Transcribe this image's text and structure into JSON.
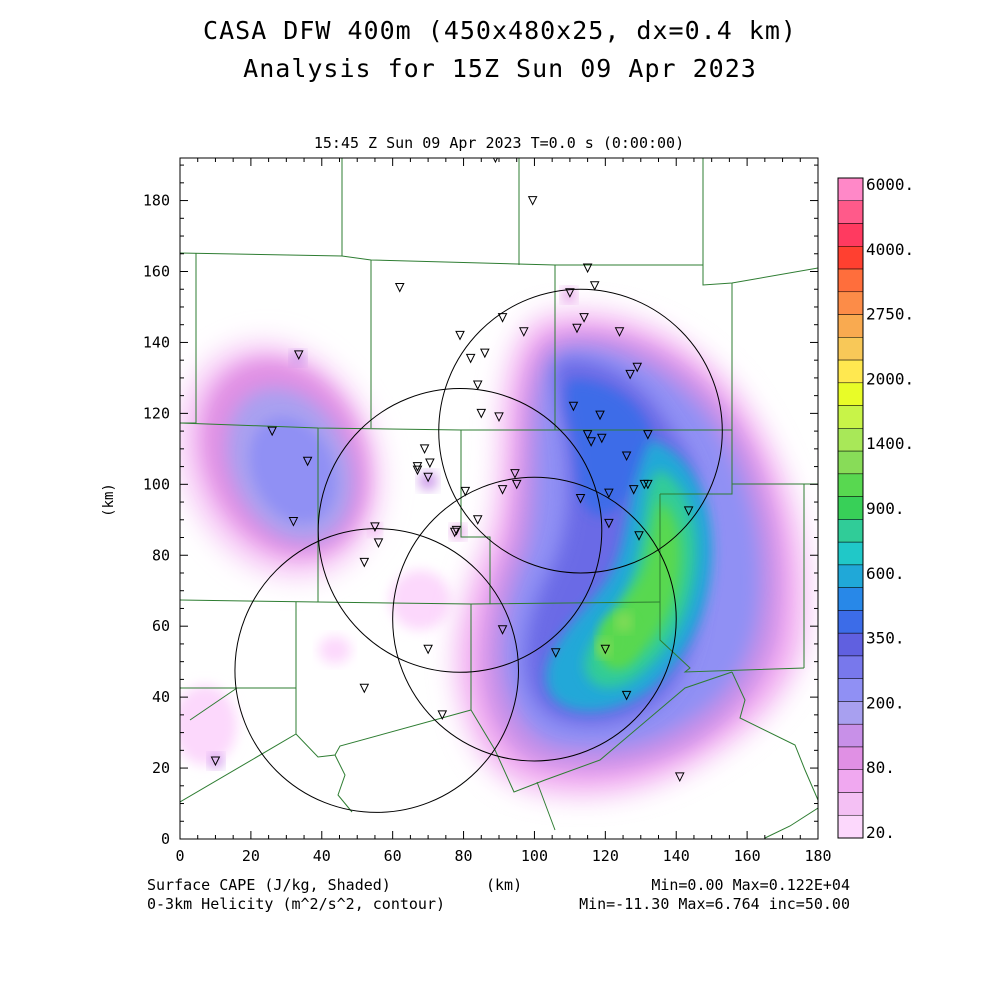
{
  "title_line1": "CASA DFW 400m (450x480x25, dx=0.4 km)",
  "title_line2": "Analysis for 15Z Sun 09 Apr 2023",
  "subtitle": "15:45 Z Sun 09 Apr 2023   T=0.0 s (0:00:00)",
  "xaxis": {
    "label": "(km)",
    "ticks": [
      "0",
      "20",
      "40",
      "60",
      "80",
      "100",
      "120",
      "140",
      "160",
      "180"
    ]
  },
  "yaxis": {
    "label": "(km)",
    "ticks": [
      "0",
      "20",
      "40",
      "60",
      "80",
      "100",
      "120",
      "140",
      "160",
      "180"
    ]
  },
  "footer": {
    "left1": "Surface CAPE (J/kg, Shaded)",
    "left2": "0-3km Helicity (m^2/s^2, contour)",
    "center": "(km)",
    "right1": "Min=0.00 Max=0.122E+04",
    "right2": "Min=-11.30 Max=6.764 inc=50.00"
  },
  "colorbar": {
    "labels": [
      "6000.",
      "4000.",
      "2750.",
      "2000.",
      "1400.",
      "900.",
      "600.",
      "350.",
      "200.",
      "80.",
      "20."
    ],
    "colors": [
      "#ff88c8",
      "#ff5a8a",
      "#ff3a60",
      "#ff4030",
      "#ff6e3c",
      "#fc8c48",
      "#f9aa50",
      "#f8c858",
      "#ffe850",
      "#e8fc28",
      "#c8f448",
      "#a8e858",
      "#88dc58",
      "#58d850",
      "#38d058",
      "#30cc98",
      "#20c8c8",
      "#20a8d8",
      "#2888e8",
      "#3c6ce8",
      "#6060e0",
      "#7878ec",
      "#9090f4",
      "#a8a0f0",
      "#c890e8",
      "#e090e4",
      "#f0a8f0",
      "#f4c0f4",
      "#fcd8fc"
    ]
  },
  "colors": {
    "boundary": "#2e7d32",
    "radar_circle": "#000000",
    "marker": "#000000"
  },
  "map": {
    "units": "km",
    "x_range": [
      0,
      180
    ],
    "y_range": [
      0,
      192
    ],
    "radar_circles": [
      {
        "center_km": [
          55.5,
          47.5
        ],
        "radius_km": 40
      },
      {
        "center_km": [
          79,
          87
        ],
        "radius_km": 40
      },
      {
        "center_km": [
          113,
          115
        ],
        "radius_km": 40
      },
      {
        "center_km": [
          100,
          62
        ],
        "radius_km": 40
      }
    ],
    "stations_km": [
      [
        89,
        192
      ],
      [
        99.5,
        180
      ],
      [
        115,
        161
      ],
      [
        117,
        156
      ],
      [
        62,
        155.5
      ],
      [
        110,
        154
      ],
      [
        114,
        147
      ],
      [
        112,
        144
      ],
      [
        124,
        143
      ],
      [
        79,
        142
      ],
      [
        91,
        147
      ],
      [
        97,
        143
      ],
      [
        82,
        135.5
      ],
      [
        86,
        137
      ],
      [
        129,
        133
      ],
      [
        127,
        131
      ],
      [
        84,
        128
      ],
      [
        33.5,
        136.5
      ],
      [
        111,
        122
      ],
      [
        118.5,
        119.5
      ],
      [
        85,
        120
      ],
      [
        90,
        119
      ],
      [
        115,
        114
      ],
      [
        119,
        113
      ],
      [
        132,
        114
      ],
      [
        116,
        112
      ],
      [
        26,
        115
      ],
      [
        69,
        110
      ],
      [
        36,
        106.5
      ],
      [
        126,
        108
      ],
      [
        70.5,
        106
      ],
      [
        67,
        105
      ],
      [
        67,
        104
      ],
      [
        70,
        102
      ],
      [
        94.5,
        103
      ],
      [
        95,
        100
      ],
      [
        131,
        100
      ],
      [
        132,
        100
      ],
      [
        80.5,
        98
      ],
      [
        91,
        98.5
      ],
      [
        121,
        97.5
      ],
      [
        128,
        98.5
      ],
      [
        113,
        96
      ],
      [
        143.5,
        92.5
      ],
      [
        32,
        89.5
      ],
      [
        84,
        90
      ],
      [
        121,
        89
      ],
      [
        55,
        88
      ],
      [
        129.5,
        85.5
      ],
      [
        78,
        87
      ],
      [
        77.5,
        86.5
      ],
      [
        56,
        83.5
      ],
      [
        52,
        78
      ],
      [
        91,
        59
      ],
      [
        70,
        53.5
      ],
      [
        106,
        52.5
      ],
      [
        120,
        53.5
      ],
      [
        52,
        42.5
      ],
      [
        126,
        40.5
      ],
      [
        74,
        35
      ],
      [
        141,
        17.5
      ],
      [
        10,
        22
      ]
    ]
  }
}
